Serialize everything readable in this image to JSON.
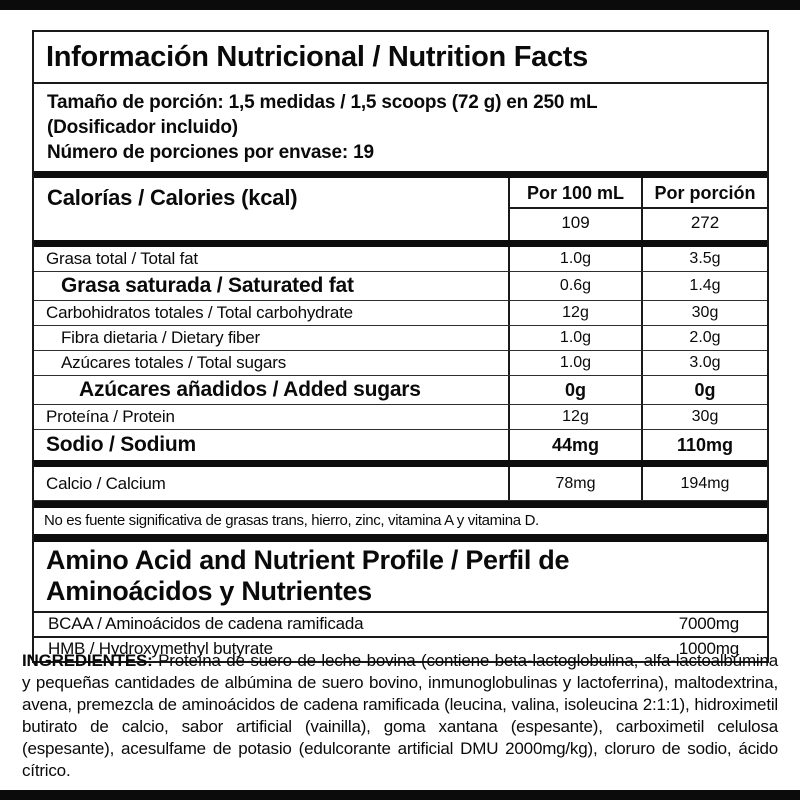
{
  "title": "Información Nutricional / Nutrition Facts",
  "serving": {
    "line1": "Tamaño de porción: 1,5 medidas / 1,5 scoops (72 g) en 250 mL",
    "line2": "(Dosificador incluido)",
    "line3": "Número de porciones por envase: 19"
  },
  "columns": {
    "per_100": "Por 100 mL",
    "per_serving": "Por porción"
  },
  "calories": {
    "label": "Calorías / Calories (kcal)",
    "per_100": "109",
    "per_serving": "272"
  },
  "nutrients": [
    {
      "name": "Grasa total / Total fat",
      "per_100": "1.0g",
      "per_serving": "3.5g"
    },
    {
      "name": "Grasa saturada / Saturated fat",
      "per_100": "0.6g",
      "per_serving": "1.4g"
    },
    {
      "name": "Carbohidratos totales / Total carbohydrate",
      "per_100": "12g",
      "per_serving": "30g"
    },
    {
      "name": "Fibra dietaria / Dietary fiber",
      "per_100": "1.0g",
      "per_serving": "2.0g"
    },
    {
      "name": "Azúcares totales / Total sugars",
      "per_100": "1.0g",
      "per_serving": "3.0g"
    },
    {
      "name": "Azúcares añadidos / Added sugars",
      "per_100": "0g",
      "per_serving": "0g"
    },
    {
      "name": "Proteína / Protein",
      "per_100": "12g",
      "per_serving": "30g"
    },
    {
      "name": "Sodio / Sodium",
      "per_100": "44mg",
      "per_serving": "110mg"
    },
    {
      "name": "Calcio / Calcium",
      "per_100": "78mg",
      "per_serving": "194mg"
    }
  ],
  "footnote": "No es fuente significativa de grasas trans, hierro, zinc, vitamina A y vitamina D.",
  "amino_profile": {
    "heading_line1": "Amino Acid and Nutrient Profile / Perfil de",
    "heading_line2": "Aminoácidos y Nutrientes",
    "rows": [
      {
        "name": "BCAA / Aminoácidos de cadena ramificada",
        "amount": "7000mg"
      },
      {
        "name": "HMB / Hydroxymethyl butyrate",
        "amount": "1000mg"
      }
    ]
  },
  "ingredients": {
    "label": "INGREDIENTES:",
    "text": " Proteína de suero de leche bovina (contiene beta-lactoglobulina, alfa-lactoalbúmina y pequeñas cantidades de albúmina de suero bovino, inmunoglobulinas y lactoferrina), maltodextrina, avena, premezcla de aminoácidos de cadena ramificada (leucina, valina, isoleucina 2:1:1), hidroximetil butirato de calcio, sabor artificial (vainilla), goma xantana (espesante), carboximetil celulosa (espesante), acesulfame de potasio (edulcorante artificial DMU 2000mg/kg), cloruro de sodio, ácido cítrico."
  },
  "colors": {
    "text": "#0a0a0a",
    "divider_bar": "#0d0d0d",
    "background": "#ffffff"
  }
}
